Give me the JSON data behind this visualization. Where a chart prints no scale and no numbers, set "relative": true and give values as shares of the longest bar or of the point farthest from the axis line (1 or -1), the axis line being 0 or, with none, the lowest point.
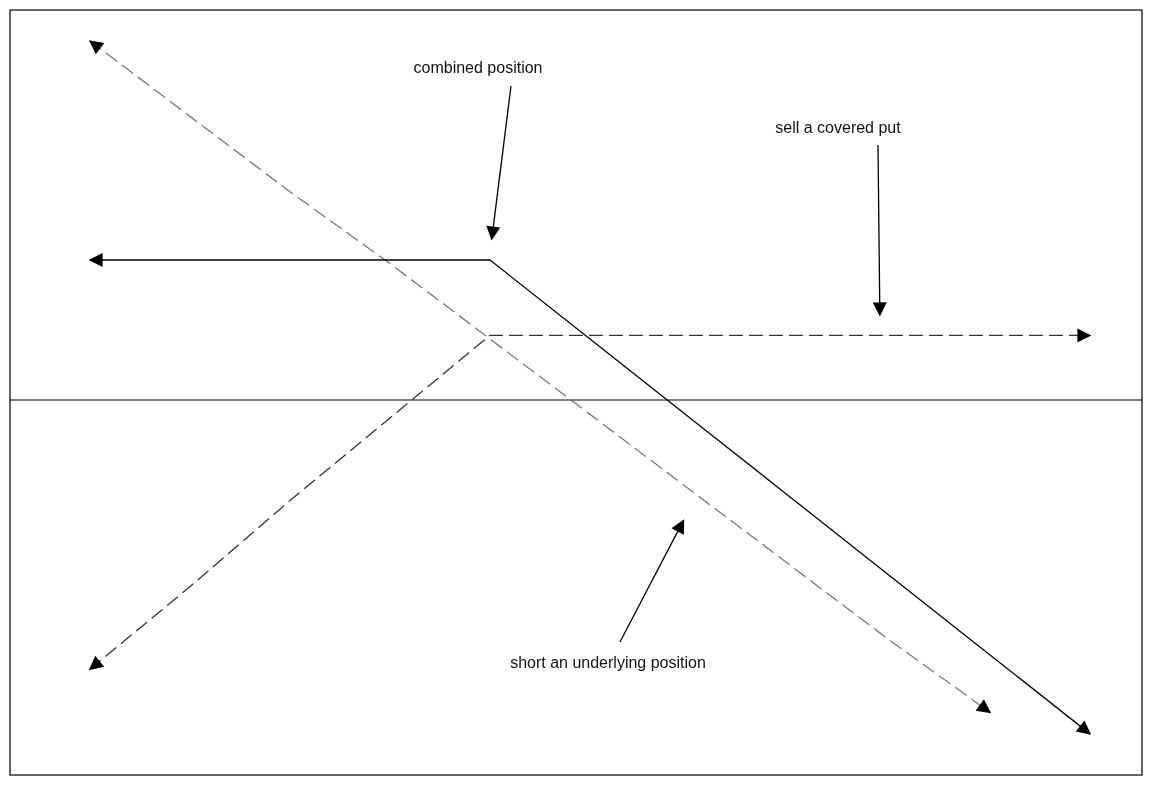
{
  "chart_data": {
    "type": "line",
    "relative": true,
    "categories": [
      null,
      null,
      null,
      null,
      null,
      null,
      null,
      null,
      null,
      null,
      null
    ],
    "series": [
      {
        "color": "#777777",
        "line_style": "dashed",
        "values": [
          1,
          0.79,
          0.58,
          0.38,
          0.17,
          -0.04,
          -0.25,
          -0.46,
          -0.67,
          -0.87,
          null
        ]
      },
      {
        "color": "#333333",
        "line_style": "dashed",
        "values": [
          -0.75,
          -0.52,
          -0.28,
          -0.05,
          0.18,
          0.18,
          0.18,
          0.18,
          0.18,
          0.18,
          0.18
        ]
      },
      {
        "color": "#000000",
        "line_style": "solid",
        "values": [
          0.39,
          0.39,
          0.39,
          0.39,
          0.39,
          0.17,
          -0.05,
          -0.27,
          -0.49,
          -0.71,
          -0.93
        ]
      }
    ],
    "annotations": [
      "combined position",
      "sell a covered put",
      "short an underlying position"
    ]
  }
}
